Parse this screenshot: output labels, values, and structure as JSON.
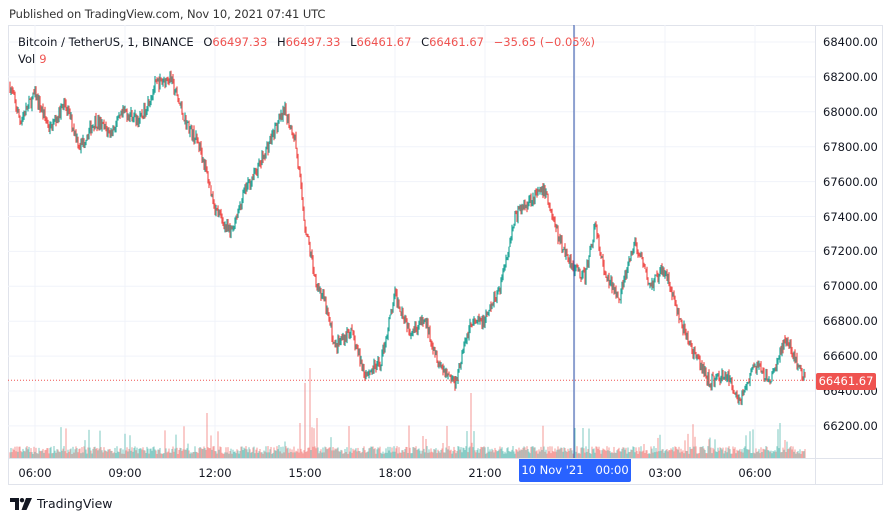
{
  "header": {
    "published": "Published on TradingView.com, Nov 10, 2021 07:41 UTC"
  },
  "legend": {
    "symbol": "Bitcoin / TetherUS, 1, BINANCE",
    "open_label": "O",
    "open": "66497.33",
    "high_label": "H",
    "high": "66497.33",
    "low_label": "L",
    "low": "66461.67",
    "close_label": "C",
    "close": "66461.67",
    "change": "−35.65 (−0.05%)",
    "vol_label": "Vol",
    "vol": "9"
  },
  "price_tag": "66461.67",
  "time_tag": {
    "date": "10 Nov '21",
    "time": "00:00"
  },
  "brand": {
    "name": "TradingView",
    "icon": "tradingview-logo-icon"
  },
  "colors": {
    "up": "#26a69a",
    "down": "#ef5350",
    "crosshair": "#2962ff",
    "grid": "#f0f3fa",
    "price_line": "#ef5350"
  },
  "chart_data": {
    "type": "candlestick",
    "title": "Bitcoin / TetherUS, 1, BINANCE",
    "interval": "1 minute",
    "xlabel": "",
    "ylabel": "",
    "x_ticks": [
      "06:00",
      "09:00",
      "12:00",
      "15:00",
      "18:00",
      "21:00",
      "10 Nov '21 00:00",
      "03:00",
      "06:00"
    ],
    "y_ticks": [
      68400,
      68200,
      68000,
      67800,
      67600,
      67400,
      67200,
      67000,
      66800,
      66600,
      66400,
      66200
    ],
    "ylim": [
      66060,
      68500
    ],
    "last_price": 66461.67,
    "ohlc_last": {
      "open": 66497.33,
      "high": 66497.33,
      "low": 66461.67,
      "close": 66461.67,
      "change": -35.65,
      "change_pct": -0.05,
      "volume": 9
    },
    "crosshair_time": "10 Nov '21 00:00",
    "approx_price_path": {
      "time": [
        "05:10",
        "05:30",
        "06:00",
        "06:30",
        "07:00",
        "07:30",
        "08:00",
        "08:30",
        "09:00",
        "09:30",
        "10:00",
        "10:30",
        "11:00",
        "11:30",
        "12:00",
        "12:30",
        "13:00",
        "13:30",
        "14:00",
        "14:20",
        "14:40",
        "15:00",
        "15:20",
        "15:40",
        "16:00",
        "16:30",
        "17:00",
        "17:30",
        "18:00",
        "18:30",
        "19:00",
        "19:30",
        "20:00",
        "20:30",
        "21:00",
        "21:30",
        "22:00",
        "22:30",
        "23:00",
        "23:30",
        "00:00",
        "00:20",
        "00:40",
        "01:00",
        "01:30",
        "02:00",
        "02:30",
        "03:00",
        "03:30",
        "04:00",
        "04:30",
        "05:00",
        "05:30",
        "06:00",
        "06:30",
        "07:00",
        "07:40"
      ],
      "price": [
        68150,
        67950,
        68100,
        67900,
        68050,
        67800,
        67950,
        67880,
        68000,
        67950,
        68150,
        68200,
        67950,
        67800,
        67450,
        67300,
        67550,
        67700,
        67900,
        68000,
        67850,
        67350,
        67050,
        66900,
        66650,
        66750,
        66500,
        66550,
        66950,
        66750,
        66800,
        66550,
        66450,
        66780,
        66800,
        67000,
        67400,
        67500,
        67550,
        67250,
        67100,
        67050,
        67350,
        67050,
        66950,
        67250,
        67000,
        67100,
        66800,
        66600,
        66450,
        66500,
        66350,
        66550,
        66450,
        66700,
        66462
      ]
    },
    "volume": {
      "typical": "low, spikes near 11:20, 14:50-15:10, 20:30, 00:00"
    },
    "grid": true,
    "legend_position": "top-left"
  }
}
